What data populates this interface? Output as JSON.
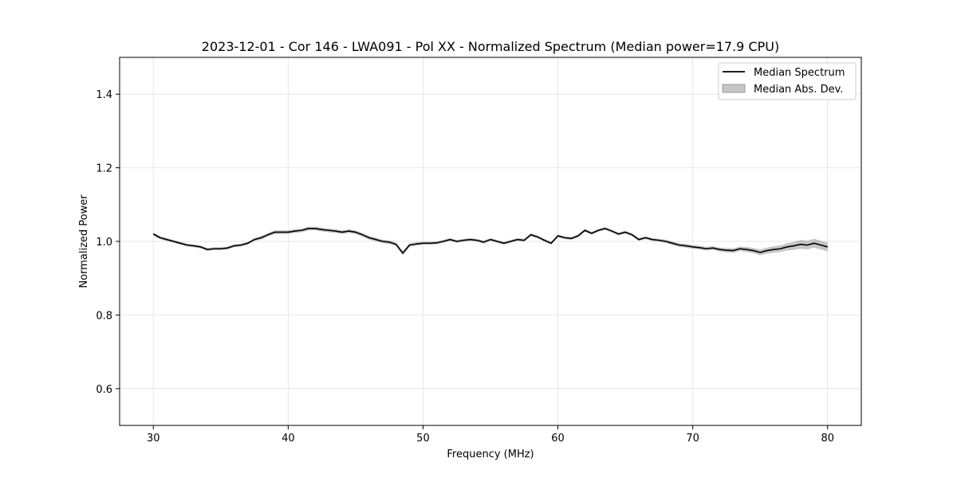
{
  "chart_data": {
    "type": "line",
    "title": "2023-12-01 - Cor 146 - LWA091 - Pol XX - Normalized Spectrum (Median power=17.9 CPU)",
    "xlabel": "Frequency (MHz)",
    "ylabel": "Normalized Power",
    "xlim": [
      27.5,
      82.5
    ],
    "ylim": [
      0.5,
      1.5
    ],
    "xticks": [
      30,
      40,
      50,
      60,
      70,
      80
    ],
    "yticks": [
      0.6,
      0.8,
      1.0,
      1.2,
      1.4
    ],
    "xtick_labels": [
      "30",
      "40",
      "50",
      "60",
      "70",
      "80"
    ],
    "ytick_labels": [
      "0.6",
      "0.8",
      "1.0",
      "1.2",
      "1.4"
    ],
    "grid": true,
    "legend_position": "top-right",
    "legend": [
      "Median Spectrum",
      "Median Abs. Dev."
    ],
    "colors": {
      "line": "#000000",
      "band": "#a0a0a0",
      "grid": "#e6e6e6"
    },
    "series": [
      {
        "name": "Median Spectrum",
        "x": [
          30,
          30.5,
          31,
          31.5,
          32,
          32.5,
          33,
          33.5,
          34,
          34.5,
          35,
          35.5,
          36,
          36.5,
          37,
          37.5,
          38,
          38.5,
          39,
          39.5,
          40,
          40.5,
          41,
          41.5,
          42,
          42.5,
          43,
          43.5,
          44,
          44.5,
          45,
          45.5,
          46,
          46.5,
          47,
          47.5,
          48,
          48.5,
          49,
          49.5,
          50,
          50.5,
          51,
          51.5,
          52,
          52.5,
          53,
          53.5,
          54,
          54.5,
          55,
          55.5,
          56,
          56.5,
          57,
          57.5,
          58,
          58.5,
          59,
          59.5,
          60,
          60.5,
          61,
          61.5,
          62,
          62.5,
          63,
          63.5,
          64,
          64.5,
          65,
          65.5,
          66,
          66.5,
          67,
          67.5,
          68,
          68.5,
          69,
          69.5,
          70,
          70.5,
          71,
          71.5,
          72,
          72.5,
          73,
          73.5,
          74,
          74.5,
          75,
          75.5,
          76,
          76.5,
          77,
          77.5,
          78,
          78.5,
          79,
          79.5,
          80
        ],
        "values": [
          1.02,
          1.01,
          1.005,
          1.0,
          0.995,
          0.99,
          0.988,
          0.985,
          0.978,
          0.98,
          0.98,
          0.982,
          0.988,
          0.99,
          0.995,
          1.005,
          1.01,
          1.018,
          1.025,
          1.025,
          1.025,
          1.028,
          1.03,
          1.035,
          1.035,
          1.032,
          1.03,
          1.028,
          1.025,
          1.028,
          1.025,
          1.018,
          1.01,
          1.005,
          1.0,
          0.998,
          0.992,
          0.968,
          0.99,
          0.993,
          0.995,
          0.995,
          0.996,
          1.0,
          1.005,
          1.0,
          1.003,
          1.005,
          1.003,
          0.998,
          1.005,
          1.0,
          0.995,
          1.0,
          1.005,
          1.003,
          1.018,
          1.012,
          1.003,
          0.995,
          1.015,
          1.01,
          1.008,
          1.015,
          1.03,
          1.022,
          1.03,
          1.035,
          1.028,
          1.02,
          1.025,
          1.018,
          1.005,
          1.01,
          1.005,
          1.003,
          1.0,
          0.995,
          0.99,
          0.988,
          0.985,
          0.983,
          0.98,
          0.982,
          0.978,
          0.976,
          0.975,
          0.98,
          0.978,
          0.975,
          0.97,
          0.975,
          0.978,
          0.98,
          0.985,
          0.988,
          0.992,
          0.99,
          0.995,
          0.99,
          0.985
        ]
      },
      {
        "name": "Median Abs. Dev.",
        "values": [
          0.004,
          0.004,
          0.004,
          0.004,
          0.004,
          0.004,
          0.004,
          0.004,
          0.004,
          0.004,
          0.004,
          0.004,
          0.004,
          0.004,
          0.004,
          0.004,
          0.005,
          0.005,
          0.005,
          0.005,
          0.005,
          0.005,
          0.005,
          0.005,
          0.005,
          0.005,
          0.005,
          0.005,
          0.005,
          0.005,
          0.005,
          0.005,
          0.005,
          0.005,
          0.005,
          0.005,
          0.005,
          0.006,
          0.005,
          0.005,
          0.004,
          0.004,
          0.004,
          0.004,
          0.004,
          0.004,
          0.004,
          0.004,
          0.004,
          0.004,
          0.004,
          0.004,
          0.004,
          0.004,
          0.004,
          0.004,
          0.004,
          0.004,
          0.004,
          0.004,
          0.004,
          0.004,
          0.004,
          0.004,
          0.004,
          0.004,
          0.004,
          0.004,
          0.004,
          0.004,
          0.004,
          0.004,
          0.004,
          0.004,
          0.004,
          0.004,
          0.005,
          0.005,
          0.005,
          0.005,
          0.005,
          0.005,
          0.005,
          0.005,
          0.005,
          0.006,
          0.006,
          0.006,
          0.007,
          0.007,
          0.008,
          0.008,
          0.009,
          0.009,
          0.01,
          0.011,
          0.012,
          0.012,
          0.012,
          0.012,
          0.012
        ]
      }
    ]
  }
}
